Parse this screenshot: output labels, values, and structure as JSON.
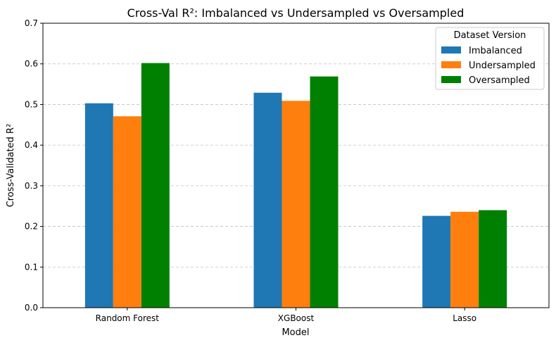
{
  "chart_data": {
    "type": "bar",
    "title": "Cross-Val R²: Imbalanced vs Undersampled vs Oversampled",
    "xlabel": "Model",
    "ylabel": "Cross-Validated R²",
    "categories": [
      "Random Forest",
      "XGBoost",
      "Lasso"
    ],
    "series": [
      {
        "name": "Imbalanced",
        "color": "#1f77b4",
        "values": [
          0.503,
          0.529,
          0.226
        ]
      },
      {
        "name": "Undersampled",
        "color": "#ff7f0e",
        "values": [
          0.471,
          0.509,
          0.236
        ]
      },
      {
        "name": "Oversampled",
        "color": "#008000",
        "values": [
          0.602,
          0.569,
          0.24
        ]
      }
    ],
    "ylim": [
      0,
      0.7
    ],
    "yticks": [
      "0.0",
      "0.1",
      "0.2",
      "0.3",
      "0.4",
      "0.5",
      "0.6",
      "0.7"
    ],
    "grid": "y, dashed",
    "legend": {
      "title": "Dataset Version",
      "position": "top-right"
    }
  }
}
